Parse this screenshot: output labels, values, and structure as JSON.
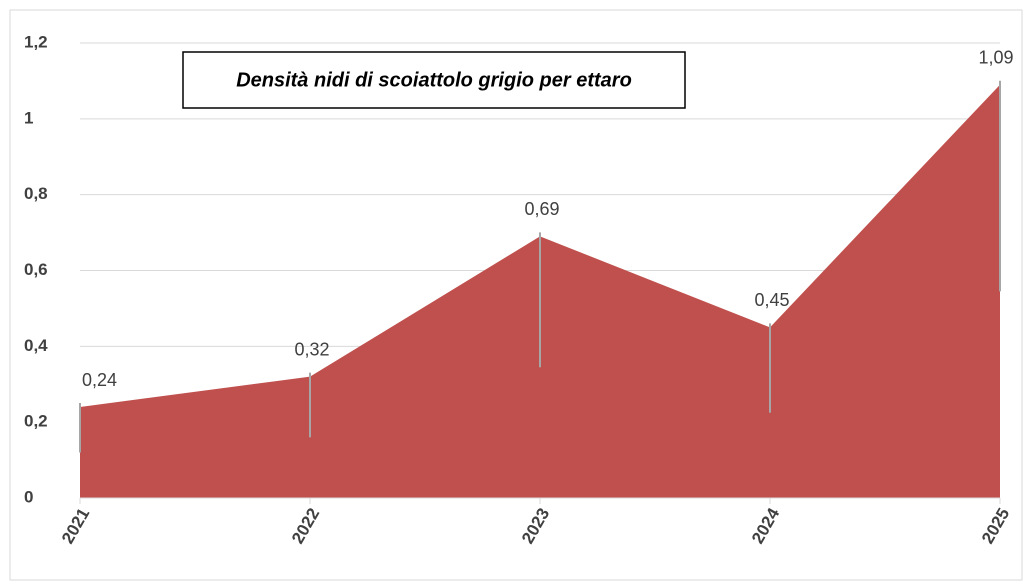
{
  "chart_data": {
    "type": "area",
    "title": "Densità nidi di scoiattolo grigio per ettaro",
    "categories": [
      "2021",
      "2022",
      "2023",
      "2024",
      "2025"
    ],
    "values": [
      0.24,
      0.32,
      0.69,
      0.45,
      1.09
    ],
    "value_labels": [
      "0,24",
      "0,32",
      "0,69",
      "0,45",
      "1,09"
    ],
    "color": "#c0504d",
    "ylim": [
      0,
      1.2
    ],
    "yticks": [
      0,
      {
        "value": 0.2,
        "label": "0,2"
      },
      {
        "value": 0.4,
        "label": "0,4"
      },
      {
        "value": 0.6,
        "label": "0,6"
      },
      {
        "value": 0.8,
        "label": "0,8"
      },
      1,
      {
        "value": 1.2,
        "label": "1,2"
      }
    ],
    "grid": true
  }
}
